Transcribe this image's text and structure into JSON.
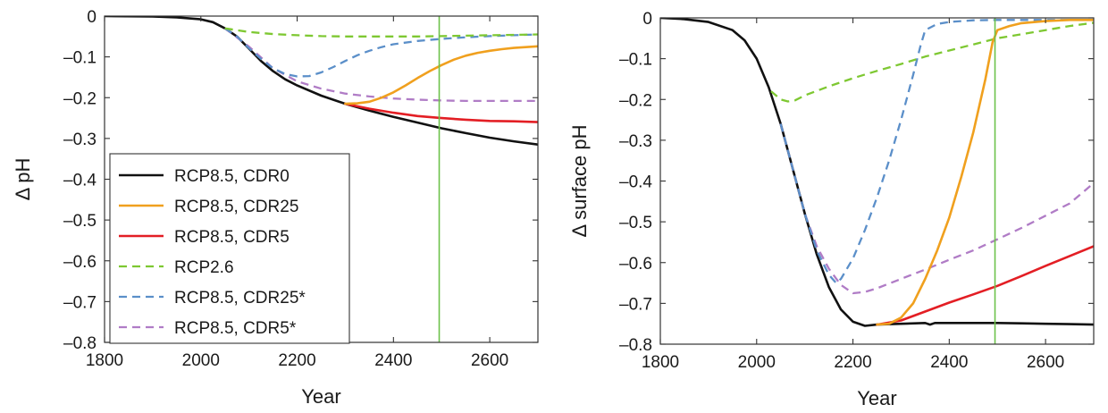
{
  "chart_data": [
    {
      "type": "line",
      "xlabel": "Year",
      "ylabel": "Δ pH",
      "xlim": [
        1800,
        2700
      ],
      "ylim": [
        -0.8,
        0
      ],
      "xticks": [
        "1800",
        "2000",
        "2200",
        "2400",
        "2600"
      ],
      "yticks": [
        "0",
        "–0.1",
        "–0.2",
        "–0.3",
        "–0.4",
        "–0.5",
        "–0.6",
        "–0.7",
        "–0.8"
      ],
      "grid": false,
      "legend_position": "bottom-left",
      "vline": 2495,
      "vline_color": "#6cc24a",
      "series": [
        {
          "name": "RCP8.5, CDR0",
          "color": "#111111",
          "dash": false,
          "x": [
            1800,
            1900,
            1950,
            2000,
            2025,
            2050,
            2075,
            2100,
            2125,
            2150,
            2175,
            2200,
            2250,
            2300,
            2350,
            2400,
            2450,
            2500,
            2550,
            2600,
            2650,
            2700
          ],
          "y": [
            0,
            -0.001,
            -0.003,
            -0.008,
            -0.015,
            -0.03,
            -0.05,
            -0.08,
            -0.11,
            -0.135,
            -0.155,
            -0.17,
            -0.195,
            -0.215,
            -0.232,
            -0.247,
            -0.261,
            -0.275,
            -0.287,
            -0.298,
            -0.307,
            -0.315
          ]
        },
        {
          "name": "RCP8.5, CDR25",
          "color": "#f0a01e",
          "dash": false,
          "x": [
            2300,
            2325,
            2350,
            2375,
            2400,
            2425,
            2450,
            2475,
            2500,
            2525,
            2550,
            2575,
            2600,
            2625,
            2650,
            2675,
            2700
          ],
          "y": [
            -0.215,
            -0.214,
            -0.21,
            -0.2,
            -0.187,
            -0.17,
            -0.152,
            -0.135,
            -0.12,
            -0.107,
            -0.097,
            -0.09,
            -0.085,
            -0.081,
            -0.078,
            -0.076,
            -0.074
          ]
        },
        {
          "name": "RCP8.5, CDR5",
          "color": "#e31e24",
          "dash": false,
          "x": [
            2300,
            2350,
            2400,
            2450,
            2500,
            2550,
            2600,
            2650,
            2700
          ],
          "y": [
            -0.215,
            -0.227,
            -0.237,
            -0.245,
            -0.25,
            -0.254,
            -0.257,
            -0.258,
            -0.26
          ]
        },
        {
          "name": "RCP2.6",
          "color": "#7ec832",
          "dash": true,
          "x": [
            2050,
            2100,
            2150,
            2200,
            2250,
            2300,
            2350,
            2400,
            2450,
            2500,
            2550,
            2600,
            2650,
            2700
          ],
          "y": [
            -0.03,
            -0.039,
            -0.044,
            -0.047,
            -0.049,
            -0.05,
            -0.05,
            -0.05,
            -0.05,
            -0.049,
            -0.048,
            -0.047,
            -0.046,
            -0.045
          ]
        },
        {
          "name": "RCP8.5, CDR25*",
          "color": "#5b8fc9",
          "dash": true,
          "x": [
            2050,
            2075,
            2100,
            2125,
            2150,
            2175,
            2200,
            2225,
            2250,
            2275,
            2300,
            2325,
            2350,
            2375,
            2400,
            2450,
            2500,
            2550,
            2600,
            2650,
            2700
          ],
          "y": [
            -0.03,
            -0.05,
            -0.079,
            -0.105,
            -0.128,
            -0.142,
            -0.148,
            -0.147,
            -0.138,
            -0.125,
            -0.11,
            -0.096,
            -0.085,
            -0.076,
            -0.069,
            -0.061,
            -0.056,
            -0.052,
            -0.049,
            -0.047,
            -0.045
          ]
        },
        {
          "name": "RCP8.5, CDR5*",
          "color": "#b07cc6",
          "dash": true,
          "x": [
            2050,
            2100,
            2150,
            2200,
            2250,
            2300,
            2350,
            2400,
            2450,
            2500,
            2550,
            2600,
            2650,
            2700
          ],
          "y": [
            -0.03,
            -0.075,
            -0.128,
            -0.16,
            -0.178,
            -0.19,
            -0.197,
            -0.202,
            -0.205,
            -0.207,
            -0.208,
            -0.208,
            -0.208,
            -0.208
          ]
        }
      ]
    },
    {
      "type": "line",
      "xlabel": "Year",
      "ylabel": "Δ surface pH",
      "xlim": [
        1800,
        2700
      ],
      "ylim": [
        -0.8,
        0
      ],
      "xticks": [
        "1800",
        "2000",
        "2200",
        "2400",
        "2600"
      ],
      "yticks": [
        "0",
        "–0.1",
        "–0.2",
        "–0.3",
        "–0.4",
        "–0.5",
        "–0.6",
        "–0.7",
        "–0.8"
      ],
      "grid": false,
      "vline": 2495,
      "vline_color": "#6cc24a",
      "series": [
        {
          "name": "RCP8.5, CDR0",
          "color": "#111111",
          "dash": false,
          "x": [
            1800,
            1850,
            1900,
            1950,
            1975,
            2000,
            2025,
            2050,
            2075,
            2100,
            2125,
            2150,
            2175,
            2200,
            2225,
            2250,
            2300,
            2350,
            2360,
            2370,
            2400,
            2450,
            2500,
            2550,
            2600,
            2650,
            2700
          ],
          "y": [
            0,
            -0.003,
            -0.01,
            -0.03,
            -0.055,
            -0.1,
            -0.17,
            -0.26,
            -0.37,
            -0.48,
            -0.58,
            -0.66,
            -0.715,
            -0.745,
            -0.755,
            -0.752,
            -0.75,
            -0.748,
            -0.752,
            -0.748,
            -0.748,
            -0.748,
            -0.748,
            -0.749,
            -0.75,
            -0.751,
            -0.752
          ]
        },
        {
          "name": "RCP8.5, CDR25",
          "color": "#f0a01e",
          "dash": false,
          "x": [
            2250,
            2275,
            2300,
            2325,
            2350,
            2375,
            2400,
            2425,
            2450,
            2475,
            2490,
            2500,
            2525,
            2550,
            2600,
            2650,
            2700
          ],
          "y": [
            -0.752,
            -0.75,
            -0.735,
            -0.7,
            -0.64,
            -0.57,
            -0.49,
            -0.39,
            -0.28,
            -0.15,
            -0.06,
            -0.03,
            -0.02,
            -0.013,
            -0.008,
            -0.005,
            -0.005
          ]
        },
        {
          "name": "RCP8.5, CDR5",
          "color": "#e31e24",
          "dash": false,
          "x": [
            2250,
            2300,
            2350,
            2400,
            2450,
            2500,
            2550,
            2600,
            2650,
            2700
          ],
          "y": [
            -0.752,
            -0.742,
            -0.72,
            -0.698,
            -0.678,
            -0.657,
            -0.633,
            -0.608,
            -0.584,
            -0.56
          ]
        },
        {
          "name": "RCP2.6",
          "color": "#7ec832",
          "dash": true,
          "x": [
            2030,
            2050,
            2065,
            2080,
            2100,
            2150,
            2200,
            2250,
            2300,
            2350,
            2400,
            2450,
            2500,
            2550,
            2600,
            2650,
            2700
          ],
          "y": [
            -0.18,
            -0.2,
            -0.205,
            -0.202,
            -0.19,
            -0.168,
            -0.148,
            -0.13,
            -0.113,
            -0.095,
            -0.08,
            -0.065,
            -0.05,
            -0.04,
            -0.03,
            -0.02,
            -0.012
          ]
        },
        {
          "name": "RCP8.5, CDR25*",
          "color": "#5b8fc9",
          "dash": true,
          "x": [
            2050,
            2075,
            2100,
            2125,
            2150,
            2165,
            2175,
            2200,
            2225,
            2250,
            2275,
            2300,
            2325,
            2340,
            2350,
            2375,
            2400,
            2450,
            2500,
            2550,
            2600,
            2650,
            2700
          ],
          "y": [
            -0.26,
            -0.37,
            -0.48,
            -0.57,
            -0.63,
            -0.65,
            -0.64,
            -0.59,
            -0.52,
            -0.44,
            -0.35,
            -0.25,
            -0.14,
            -0.07,
            -0.03,
            -0.015,
            -0.01,
            -0.006,
            -0.005,
            -0.005,
            -0.005,
            -0.005,
            -0.005
          ]
        },
        {
          "name": "RCP8.5, CDR5*",
          "color": "#b07cc6",
          "dash": true,
          "x": [
            2050,
            2075,
            2100,
            2125,
            2150,
            2175,
            2200,
            2225,
            2250,
            2300,
            2350,
            2400,
            2450,
            2500,
            2550,
            2600,
            2650,
            2700
          ],
          "y": [
            -0.26,
            -0.37,
            -0.48,
            -0.56,
            -0.615,
            -0.655,
            -0.675,
            -0.672,
            -0.663,
            -0.64,
            -0.617,
            -0.593,
            -0.57,
            -0.543,
            -0.515,
            -0.485,
            -0.455,
            -0.405
          ]
        }
      ]
    }
  ]
}
